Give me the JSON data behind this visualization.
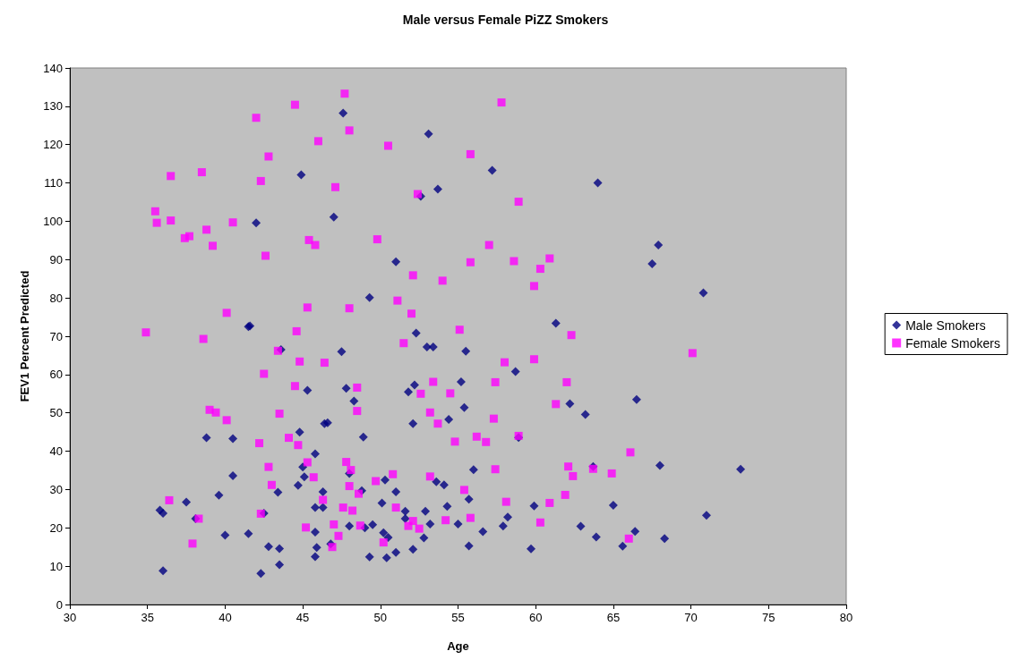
{
  "chart_data": {
    "type": "scatter",
    "title": "Male versus Female PiZZ Smokers",
    "xlabel": "Age",
    "ylabel": "FEV1 Percent Predicted",
    "xlim": [
      30,
      80
    ],
    "xticks": [
      30,
      35,
      40,
      45,
      50,
      55,
      60,
      65,
      70,
      75,
      80
    ],
    "ylim": [
      0,
      140
    ],
    "yticks": [
      0,
      10,
      20,
      30,
      40,
      50,
      60,
      70,
      80,
      90,
      100,
      110,
      120,
      130,
      140
    ],
    "grid": false,
    "legend": "right",
    "series": [
      {
        "name": "Male Smokers",
        "color": "#000080",
        "marker": "diamond",
        "x": [
          47.6,
          53.1,
          52.6,
          53.7,
          57.2,
          64.0,
          44.9,
          47.0,
          42.0,
          67.9,
          67.5,
          70.8,
          51.0,
          49.3,
          41.5,
          41.6,
          61.3,
          52.3,
          43.6,
          47.5,
          53.0,
          53.4,
          55.5,
          58.7,
          55.2,
          52.2,
          51.8,
          47.8,
          45.3,
          48.3,
          55.4,
          62.2,
          66.5,
          63.2,
          54.4,
          52.1,
          46.6,
          46.4,
          38.8,
          40.5,
          44.8,
          48.9,
          58.9,
          45.8,
          45.0,
          48.0,
          56.0,
          63.7,
          68.0,
          73.2,
          40.5,
          45.1,
          50.3,
          53.6,
          54.1,
          44.7,
          51.0,
          46.3,
          43.4,
          39.6,
          48.8,
          55.7,
          37.5,
          50.1,
          45.8,
          46.3,
          54.3,
          65.0,
          59.9,
          42.5,
          36.0,
          35.8,
          51.6,
          52.9,
          71.0,
          58.2,
          38.1,
          51.6,
          55.0,
          53.2,
          48.0,
          49.5,
          57.9,
          62.9,
          40.0,
          41.5,
          45.8,
          50.2,
          52.8,
          56.6,
          63.9,
          68.3,
          66.4,
          49.0,
          50.5,
          52.1,
          55.7,
          59.7,
          65.6,
          42.8,
          43.5,
          45.9,
          46.8,
          49.3,
          50.4,
          51.0,
          45.8,
          43.5,
          36.0,
          42.3
        ],
        "values": [
          128.2,
          122.8,
          106.5,
          108.4,
          113.3,
          110.0,
          112.1,
          101.1,
          99.6,
          93.8,
          88.9,
          81.3,
          89.4,
          80.1,
          72.5,
          72.7,
          73.4,
          70.8,
          66.5,
          66.0,
          67.2,
          67.2,
          66.1,
          60.8,
          58.1,
          57.3,
          55.5,
          56.4,
          55.9,
          53.1,
          51.4,
          52.4,
          53.5,
          49.6,
          48.3,
          47.2,
          47.4,
          47.2,
          43.5,
          43.3,
          45.0,
          43.7,
          43.6,
          39.3,
          35.9,
          34.2,
          35.2,
          36.0,
          36.3,
          35.3,
          33.6,
          33.3,
          32.5,
          32.0,
          31.2,
          31.1,
          29.4,
          29.4,
          29.3,
          28.5,
          29.7,
          27.5,
          26.7,
          26.5,
          25.3,
          25.3,
          25.6,
          25.9,
          25.7,
          23.8,
          23.8,
          24.6,
          24.3,
          24.3,
          23.3,
          22.8,
          22.4,
          22.4,
          21.0,
          21.0,
          20.5,
          20.8,
          20.5,
          20.4,
          18.1,
          18.5,
          18.9,
          18.7,
          17.4,
          19.0,
          17.6,
          17.2,
          19.1,
          20.0,
          17.5,
          14.4,
          15.3,
          14.5,
          15.2,
          15.1,
          14.6,
          14.9,
          15.8,
          12.4,
          12.2,
          13.6,
          12.5,
          10.4,
          8.8,
          8.1
        ]
      },
      {
        "name": "Female Smokers",
        "color": "#ff00ff",
        "marker": "square",
        "x": [
          47.7,
          57.8,
          44.5,
          42.0,
          48.0,
          46.0,
          50.5,
          55.8,
          42.8,
          36.5,
          38.5,
          42.3,
          47.1,
          52.4,
          58.9,
          35.5,
          35.6,
          36.5,
          40.5,
          38.8,
          37.4,
          37.7,
          39.2,
          45.4,
          45.8,
          49.8,
          57.0,
          60.9,
          60.3,
          58.6,
          55.8,
          42.6,
          54.0,
          52.1,
          59.9,
          51.1,
          45.3,
          48.0,
          40.1,
          52.0,
          34.9,
          44.6,
          55.1,
          62.3,
          38.6,
          51.5,
          43.4,
          70.1,
          59.9,
          44.8,
          46.4,
          58.0,
          42.5,
          62.0,
          53.4,
          57.4,
          44.5,
          48.5,
          52.6,
          54.5,
          61.3,
          39.0,
          39.4,
          43.5,
          48.5,
          53.2,
          57.3,
          40.1,
          53.7,
          56.2,
          56.8,
          54.8,
          58.9,
          42.2,
          44.1,
          44.7,
          66.1,
          47.8,
          45.3,
          42.8,
          48.1,
          50.8,
          57.4,
          62.1,
          63.7,
          64.9,
          62.4,
          53.2,
          45.7,
          43.0,
          48.0,
          49.7,
          55.4,
          48.6,
          61.9,
          36.4,
          46.3,
          58.1,
          60.9,
          47.6,
          51.0,
          55.8,
          54.2,
          52.1,
          51.8,
          52.5,
          60.3,
          48.2,
          42.3,
          38.3,
          45.2,
          48.7,
          47.0,
          47.3,
          37.9,
          46.9,
          50.2,
          66.0
        ],
        "values": [
          133.3,
          131.0,
          130.4,
          127.0,
          123.7,
          120.9,
          119.7,
          117.5,
          116.9,
          111.8,
          112.8,
          110.5,
          108.9,
          107.1,
          105.1,
          102.6,
          99.6,
          100.2,
          99.7,
          97.8,
          95.6,
          96.1,
          93.6,
          95.1,
          93.8,
          95.3,
          93.8,
          90.3,
          87.6,
          89.6,
          89.3,
          91.0,
          84.5,
          85.9,
          83.1,
          79.3,
          77.5,
          77.3,
          76.1,
          75.9,
          71.0,
          71.3,
          71.7,
          70.3,
          69.3,
          68.2,
          66.2,
          65.6,
          64.0,
          63.4,
          63.1,
          63.2,
          60.2,
          58.0,
          58.1,
          58.0,
          57.0,
          56.6,
          55.0,
          55.1,
          52.3,
          50.8,
          50.1,
          49.8,
          50.5,
          50.1,
          48.5,
          48.1,
          47.2,
          43.8,
          42.4,
          42.5,
          44.0,
          42.1,
          43.5,
          41.6,
          39.7,
          37.2,
          37.1,
          35.9,
          35.1,
          34.0,
          35.3,
          36.0,
          35.4,
          34.2,
          33.5,
          33.4,
          33.2,
          31.2,
          30.9,
          32.2,
          29.9,
          28.9,
          28.6,
          27.2,
          27.3,
          26.8,
          26.5,
          25.3,
          25.3,
          22.6,
          22.0,
          21.8,
          20.5,
          19.8,
          21.4,
          24.5,
          23.7,
          22.4,
          20.1,
          20.6,
          20.9,
          17.9,
          15.9,
          15.0,
          16.2,
          17.2
        ]
      }
    ]
  }
}
